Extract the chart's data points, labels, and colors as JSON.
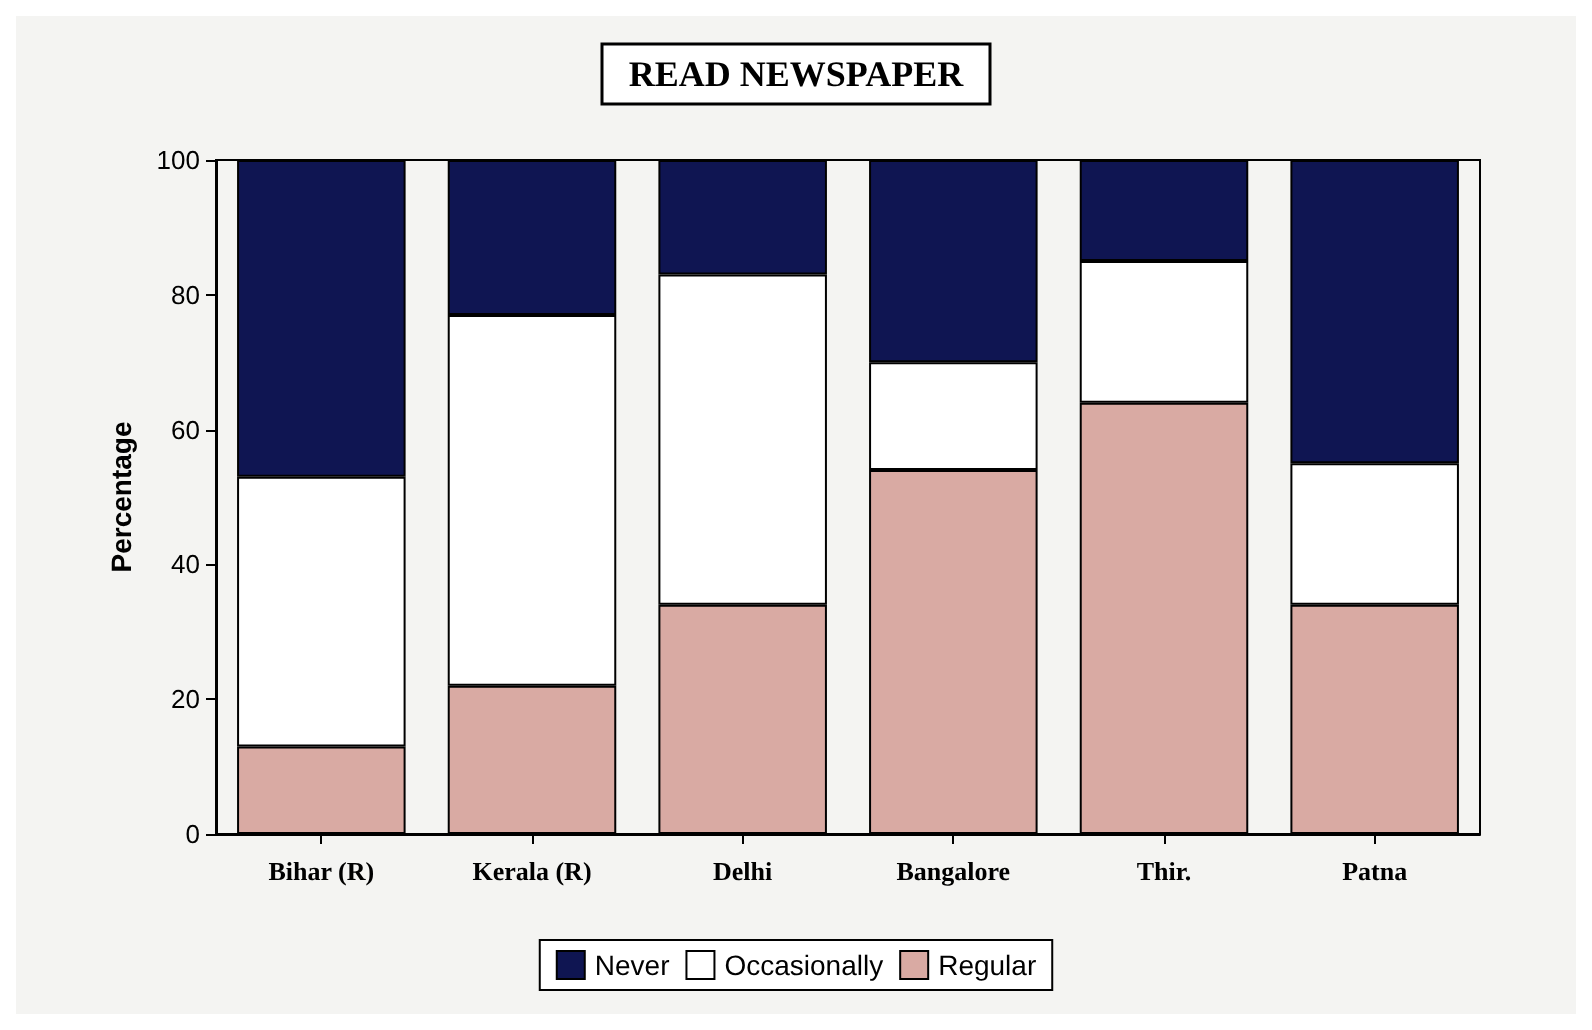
{
  "chart_data": {
    "type": "bar",
    "title": "READ NEWSPAPER",
    "ylabel": "Percentage",
    "stacked": true,
    "categories": [
      "Bihar (R)",
      "Kerala (R)",
      "Delhi",
      "Bangalore",
      "Thir.",
      "Patna"
    ],
    "series": [
      {
        "name": "Regular",
        "color": "#d9aaa3",
        "values": [
          13,
          22,
          34,
          54,
          64,
          34
        ]
      },
      {
        "name": "Occasionally",
        "color": "#ffffff",
        "values": [
          40,
          55,
          49,
          16,
          21,
          21
        ]
      },
      {
        "name": "Never",
        "color": "#0f1552",
        "values": [
          47,
          23,
          17,
          30,
          15,
          45
        ]
      }
    ],
    "ylim": [
      0,
      100
    ],
    "yticks": [
      0,
      20,
      40,
      60,
      80,
      100
    ],
    "grid": false,
    "legend": "bottom"
  }
}
